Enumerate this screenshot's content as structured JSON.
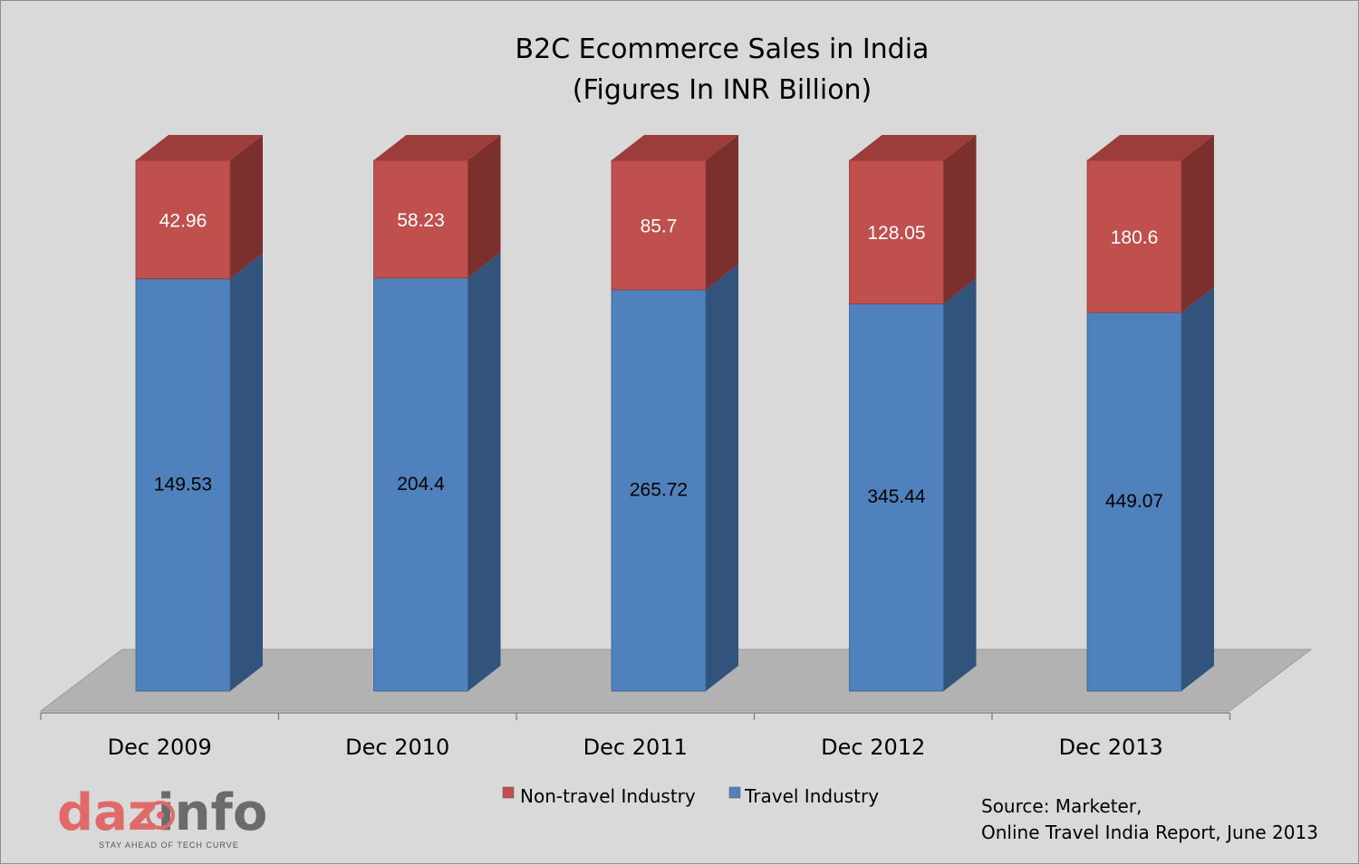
{
  "chart_data": {
    "type": "bar",
    "stacked": true,
    "three_d": true,
    "title": "B2C Ecommerce Sales in India",
    "subtitle": "(Figures In INR Billion)",
    "categories": [
      "Dec 2009",
      "Dec 2010",
      "Dec 2011",
      "Dec 2012",
      "Dec 2013"
    ],
    "series": [
      {
        "name": "Travel Industry",
        "values": [
          149.53,
          204.4,
          265.72,
          345.44,
          449.07
        ],
        "color": "#4f81bd",
        "label_color": "#000000"
      },
      {
        "name": "Non-travel Industry",
        "values": [
          42.96,
          58.23,
          85.7,
          128.05,
          180.6
        ],
        "color": "#c0504d",
        "label_color": "#ffffff"
      }
    ],
    "normalized_100_percent": true,
    "legend": {
      "position": "bottom",
      "order": [
        "Non-travel Industry",
        "Travel Industry"
      ]
    },
    "grid": false,
    "source": [
      "Source: Marketer,",
      "Online Travel India Report, June 2013"
    ]
  },
  "logo": {
    "text_left": "daz",
    "text_right": "info",
    "tagline": "STAY AHEAD OF TECH CURVE",
    "colors": {
      "left": "#e06a6a",
      "right": "#6b6b6b",
      "target": "#e06a6a"
    }
  },
  "colors": {
    "background": "#d9d9d9",
    "floor": "#b2b2b2",
    "travel_front": "#4f81bd",
    "travel_side": "#32537c",
    "nontravel_front": "#c0504d",
    "nontravel_side": "#7c302e",
    "nontravel_top": "#9c3d3b"
  }
}
